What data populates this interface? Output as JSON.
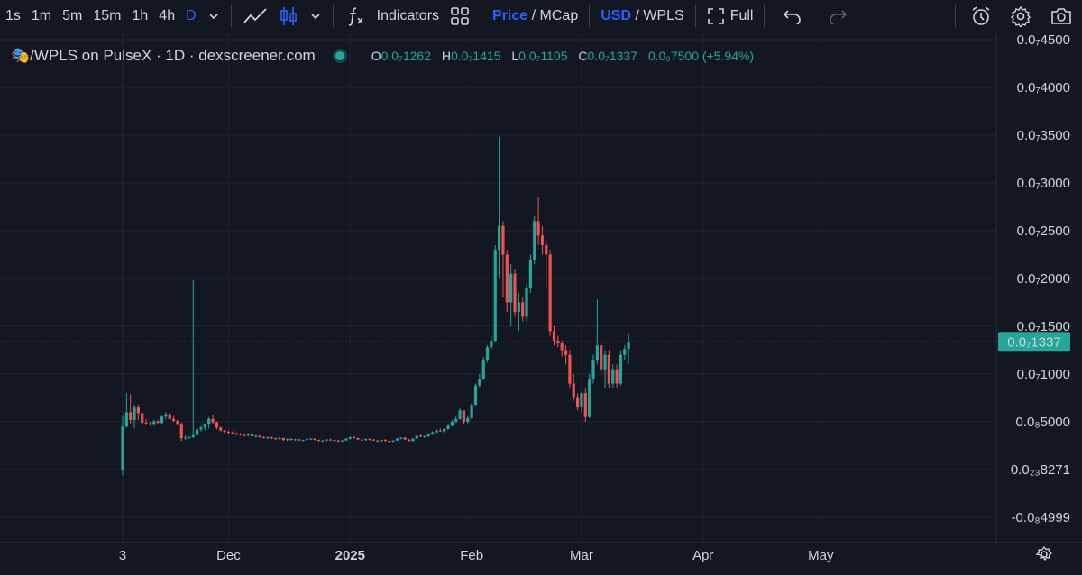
{
  "toolbar": {
    "intervals": [
      "1s",
      "1m",
      "5m",
      "15m",
      "1h",
      "4h",
      "D"
    ],
    "active_interval": "D",
    "indicators_label": "Indicators",
    "price_label": "Price",
    "mcap_label": "MCap",
    "usd_label": "USD",
    "wpls_label": "WPLS",
    "full_label": "Full",
    "separator": "/"
  },
  "legend": {
    "symbol": "🎭/WPLS on PulseX · 1D · dexscreener.com",
    "o_key": "O",
    "o_val": "0.0₇1262",
    "h_key": "H",
    "h_val": "0.0₇1415",
    "l_key": "L",
    "l_val": "0.0₇1105",
    "c_key": "C",
    "c_val": "0.0₇1337",
    "change": "0.0₉7500 (+5.94%)"
  },
  "price_axis": {
    "ticks": [
      {
        "label": "0.0₇4500",
        "value": 4500
      },
      {
        "label": "0.0₇4000",
        "value": 4000
      },
      {
        "label": "0.0₇3500",
        "value": 3500
      },
      {
        "label": "0.0₇3000",
        "value": 3000
      },
      {
        "label": "0.0₇2500",
        "value": 2500
      },
      {
        "label": "0.0₇2000",
        "value": 2000
      },
      {
        "label": "0.0₇1500",
        "value": 1500
      },
      {
        "label": "0.0₇1000",
        "value": 1000
      },
      {
        "label": "0.0₈5000",
        "value": 500
      },
      {
        "label": "0.0₂₃8271",
        "value": 0
      },
      {
        "label": "-0.0₈4999",
        "value": -500
      }
    ],
    "current_label": "0.0₇1337",
    "current_value": 1337
  },
  "time_axis": {
    "labels": [
      {
        "label": "3",
        "index": 0,
        "bold": false
      },
      {
        "label": "Dec",
        "index": 27,
        "bold": false
      },
      {
        "label": "2025",
        "index": 58,
        "bold": true
      },
      {
        "label": "Feb",
        "index": 89,
        "bold": false
      },
      {
        "label": "Mar",
        "index": 117,
        "bold": false
      },
      {
        "label": "Apr",
        "index": 148,
        "bold": false
      },
      {
        "label": "May",
        "index": 178,
        "bold": false
      }
    ]
  },
  "colors": {
    "up": "#26a69a",
    "down": "#ef5350",
    "background": "#131722",
    "grid": "#1f2430",
    "accent": "#2962ff"
  },
  "chart_data": {
    "type": "candlestick",
    "unit": "× 1e-11 USD",
    "ylim": [
      -700,
      4600
    ],
    "start_label": "3",
    "candles": [
      [
        0,
        560,
        -60,
        450
      ],
      [
        450,
        800,
        440,
        600
      ],
      [
        600,
        790,
        480,
        520
      ],
      [
        520,
        680,
        430,
        650
      ],
      [
        650,
        680,
        520,
        590
      ],
      [
        590,
        600,
        470,
        490
      ],
      [
        490,
        530,
        470,
        480
      ],
      [
        480,
        500,
        460,
        470
      ],
      [
        470,
        520,
        460,
        505
      ],
      [
        505,
        520,
        480,
        490
      ],
      [
        490,
        570,
        470,
        555
      ],
      [
        555,
        600,
        530,
        580
      ],
      [
        580,
        590,
        520,
        530
      ],
      [
        530,
        560,
        500,
        510
      ],
      [
        510,
        520,
        460,
        470
      ],
      [
        470,
        490,
        300,
        330
      ],
      [
        330,
        360,
        310,
        335
      ],
      [
        335,
        350,
        320,
        340
      ],
      [
        340,
        1980,
        330,
        360
      ],
      [
        360,
        430,
        350,
        420
      ],
      [
        420,
        460,
        400,
        440
      ],
      [
        440,
        480,
        410,
        470
      ],
      [
        470,
        550,
        430,
        530
      ],
      [
        530,
        570,
        480,
        495
      ],
      [
        495,
        505,
        420,
        440
      ],
      [
        440,
        450,
        400,
        410
      ],
      [
        410,
        420,
        380,
        395
      ],
      [
        395,
        410,
        370,
        385
      ],
      [
        385,
        400,
        365,
        380
      ],
      [
        380,
        390,
        360,
        375
      ],
      [
        375,
        385,
        355,
        365
      ],
      [
        365,
        375,
        345,
        360
      ],
      [
        360,
        380,
        345,
        370
      ],
      [
        370,
        375,
        340,
        350
      ],
      [
        350,
        365,
        335,
        355
      ],
      [
        355,
        360,
        330,
        340
      ],
      [
        340,
        350,
        325,
        335
      ],
      [
        335,
        345,
        320,
        338
      ],
      [
        338,
        345,
        320,
        330
      ],
      [
        330,
        335,
        310,
        320
      ],
      [
        320,
        340,
        310,
        330
      ],
      [
        330,
        335,
        300,
        310
      ],
      [
        310,
        325,
        300,
        320
      ],
      [
        320,
        330,
        305,
        315
      ],
      [
        315,
        325,
        300,
        318
      ],
      [
        318,
        320,
        300,
        305
      ],
      [
        305,
        315,
        295,
        310
      ],
      [
        310,
        325,
        300,
        320
      ],
      [
        320,
        330,
        310,
        325
      ],
      [
        325,
        330,
        305,
        310
      ],
      [
        310,
        315,
        295,
        300
      ],
      [
        300,
        310,
        290,
        305
      ],
      [
        305,
        320,
        295,
        315
      ],
      [
        315,
        325,
        305,
        310
      ],
      [
        310,
        315,
        300,
        305
      ],
      [
        305,
        310,
        290,
        298
      ],
      [
        298,
        310,
        290,
        305
      ],
      [
        305,
        330,
        300,
        325
      ],
      [
        325,
        345,
        315,
        340
      ],
      [
        340,
        350,
        325,
        330
      ],
      [
        330,
        335,
        310,
        315
      ],
      [
        315,
        320,
        300,
        310
      ],
      [
        310,
        325,
        300,
        320
      ],
      [
        320,
        330,
        305,
        315
      ],
      [
        315,
        320,
        300,
        305
      ],
      [
        305,
        310,
        290,
        300
      ],
      [
        300,
        315,
        290,
        310
      ],
      [
        310,
        320,
        295,
        300
      ],
      [
        300,
        305,
        285,
        295
      ],
      [
        295,
        310,
        285,
        305
      ],
      [
        305,
        330,
        300,
        325
      ],
      [
        325,
        340,
        315,
        335
      ],
      [
        335,
        340,
        310,
        315
      ],
      [
        315,
        320,
        295,
        300
      ],
      [
        300,
        330,
        295,
        325
      ],
      [
        325,
        360,
        320,
        355
      ],
      [
        355,
        370,
        340,
        345
      ],
      [
        345,
        360,
        330,
        350
      ],
      [
        350,
        380,
        340,
        375
      ],
      [
        375,
        400,
        365,
        390
      ],
      [
        390,
        420,
        380,
        410
      ],
      [
        410,
        430,
        395,
        400
      ],
      [
        400,
        430,
        390,
        425
      ],
      [
        425,
        470,
        415,
        460
      ],
      [
        460,
        520,
        450,
        500
      ],
      [
        500,
        560,
        490,
        530
      ],
      [
        530,
        640,
        520,
        620
      ],
      [
        620,
        610,
        480,
        500
      ],
      [
        500,
        560,
        480,
        540
      ],
      [
        540,
        700,
        530,
        680
      ],
      [
        680,
        900,
        670,
        880
      ],
      [
        880,
        1000,
        860,
        950
      ],
      [
        950,
        1180,
        940,
        1150
      ],
      [
        1150,
        1300,
        1120,
        1280
      ],
      [
        1280,
        1400,
        1260,
        1350
      ],
      [
        1350,
        2350,
        1330,
        2300
      ],
      [
        2300,
        3480,
        2000,
        2550
      ],
      [
        2550,
        2600,
        1800,
        2250
      ],
      [
        2250,
        2300,
        1650,
        1750
      ],
      [
        1750,
        2150,
        1500,
        2050
      ],
      [
        2050,
        2100,
        1600,
        1650
      ],
      [
        1650,
        1850,
        1450,
        1750
      ],
      [
        1750,
        1800,
        1550,
        1600
      ],
      [
        1600,
        1950,
        1550,
        1900
      ],
      [
        1900,
        2250,
        1850,
        2200
      ],
      [
        2200,
        2650,
        2150,
        2600
      ],
      [
        2600,
        2850,
        2350,
        2450
      ],
      [
        2450,
        2550,
        2250,
        2350
      ],
      [
        2350,
        2400,
        1900,
        2250
      ],
      [
        2250,
        2300,
        1400,
        1450
      ],
      [
        1450,
        1500,
        1300,
        1350
      ],
      [
        1350,
        1400,
        1280,
        1320
      ],
      [
        1320,
        1350,
        1180,
        1250
      ],
      [
        1250,
        1300,
        1100,
        1200
      ],
      [
        1200,
        1250,
        850,
        900
      ],
      [
        900,
        1000,
        720,
        750
      ],
      [
        750,
        800,
        620,
        650
      ],
      [
        650,
        820,
        600,
        800
      ],
      [
        800,
        850,
        500,
        550
      ],
      [
        550,
        1000,
        540,
        950
      ],
      [
        950,
        1200,
        900,
        1150
      ],
      [
        1150,
        1780,
        1100,
        1300
      ],
      [
        1300,
        1320,
        1000,
        1050
      ],
      [
        1050,
        1250,
        850,
        1200
      ],
      [
        1200,
        1250,
        850,
        900
      ],
      [
        900,
        1100,
        850,
        1050
      ],
      [
        1050,
        1100,
        850,
        900
      ],
      [
        900,
        1250,
        880,
        1200
      ],
      [
        1200,
        1300,
        1150,
        1262
      ],
      [
        1262,
        1415,
        1105,
        1337
      ]
    ]
  }
}
